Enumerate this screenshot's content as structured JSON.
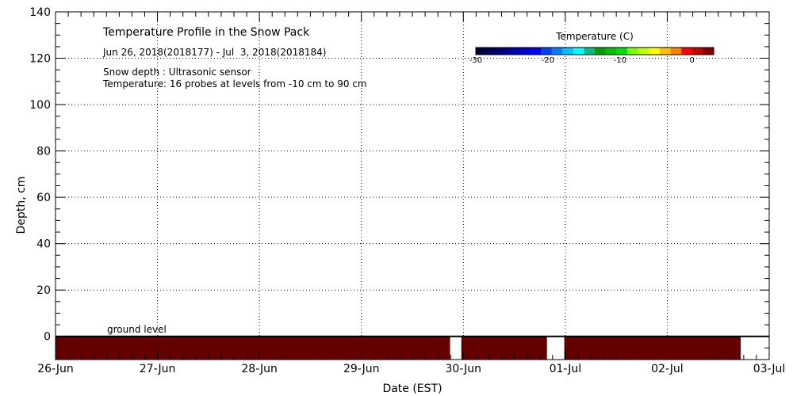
{
  "chart_data": {
    "type": "heatmap",
    "title": "Temperature Profile in the Snow Pack",
    "subtitle": "Jun 26, 2018(2018177) - Jul  3, 2018(2018184)",
    "notes": [
      "Snow depth : Ultrasonic sensor",
      "Temperature: 16 probes at levels from -10 cm to 90 cm"
    ],
    "xlabel": "Date (EST)",
    "ylabel": "Depth, cm",
    "x_ticks": [
      "26-Jun",
      "27-Jun",
      "28-Jun",
      "29-Jun",
      "30-Jun",
      "01-Jul",
      "02-Jul",
      "03-Jul"
    ],
    "y_ticks": [
      0,
      20,
      40,
      60,
      80,
      100,
      120,
      140
    ],
    "ylim": [
      -10,
      140
    ],
    "xlim_days": [
      0,
      7
    ],
    "grid": true,
    "ground_label": "ground level",
    "colorbar": {
      "title": "Temperature (C)",
      "range": [
        -30,
        3
      ],
      "tick_values": [
        -30,
        -20,
        -10,
        0
      ],
      "tick_labels": [
        "-30",
        "-20",
        "-10",
        "0"
      ],
      "colors": [
        "#000040",
        "#000060",
        "#000080",
        "#0000a8",
        "#0000d0",
        "#0000ff",
        "#0040ff",
        "#0080ff",
        "#00c0ff",
        "#00ffff",
        "#00c080",
        "#00a000",
        "#00c000",
        "#00e000",
        "#80ff00",
        "#c0ff00",
        "#ffff00",
        "#ffc000",
        "#ff8000",
        "#ff0000",
        "#c00000",
        "#800000"
      ]
    },
    "series": [
      {
        "level_range_cm": [
          -10,
          0
        ],
        "value_c": 2.5,
        "color": "#640000",
        "segments_days": [
          [
            0,
            3.87
          ],
          [
            3.98,
            4.82
          ],
          [
            4.99,
            6.72
          ]
        ]
      }
    ]
  }
}
